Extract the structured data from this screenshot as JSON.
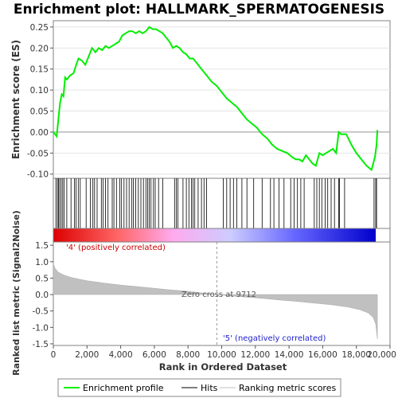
{
  "chart_data": {
    "type": "line",
    "title": "Enrichment plot: HALLMARK_SPERMATOGENESIS",
    "top_panel": {
      "ylabel": "Enrichment score (ES)",
      "ylim": [
        -0.11,
        0.265
      ],
      "yticks": [
        -0.1,
        -0.05,
        0.0,
        0.05,
        0.1,
        0.15,
        0.2,
        0.25
      ],
      "ytick_labels": [
        "-0.10",
        "-0.05",
        "0.00",
        "0.05",
        "0.10",
        "0.15",
        "0.20",
        "0.25"
      ],
      "series": [
        {
          "name": "Enrichment profile",
          "color": "#00ee00",
          "x": [
            0,
            200,
            300,
            400,
            500,
            600,
            700,
            800,
            1000,
            1200,
            1400,
            1500,
            1700,
            1900,
            2100,
            2300,
            2500,
            2700,
            2900,
            3100,
            3300,
            3500,
            3700,
            3900,
            4100,
            4300,
            4500,
            4700,
            4900,
            5100,
            5300,
            5500,
            5700,
            5900,
            6100,
            6300,
            6500,
            6700,
            6900,
            7100,
            7300,
            7500,
            7700,
            7900,
            8100,
            8300,
            8500,
            8800,
            9100,
            9400,
            9700,
            10000,
            10300,
            10600,
            10900,
            11200,
            11500,
            11800,
            12100,
            12400,
            12700,
            13000,
            13300,
            13600,
            13900,
            14200,
            14400,
            14600,
            14800,
            15000,
            15200,
            15400,
            15600,
            15800,
            16000,
            16200,
            16400,
            16600,
            16800,
            16950,
            17100,
            17400,
            17700,
            18000,
            18300,
            18600,
            18900,
            19100,
            19200,
            19250
          ],
          "y": [
            0.0,
            -0.01,
            0.03,
            0.07,
            0.09,
            0.085,
            0.13,
            0.125,
            0.135,
            0.14,
            0.165,
            0.175,
            0.17,
            0.16,
            0.18,
            0.2,
            0.19,
            0.2,
            0.195,
            0.205,
            0.2,
            0.205,
            0.21,
            0.215,
            0.23,
            0.235,
            0.24,
            0.24,
            0.235,
            0.24,
            0.235,
            0.24,
            0.25,
            0.245,
            0.245,
            0.24,
            0.235,
            0.225,
            0.215,
            0.2,
            0.205,
            0.2,
            0.19,
            0.185,
            0.175,
            0.175,
            0.165,
            0.15,
            0.135,
            0.12,
            0.11,
            0.095,
            0.08,
            0.07,
            0.06,
            0.045,
            0.03,
            0.02,
            0.01,
            -0.005,
            -0.015,
            -0.03,
            -0.04,
            -0.045,
            -0.05,
            -0.06,
            -0.065,
            -0.065,
            -0.07,
            -0.055,
            -0.065,
            -0.075,
            -0.08,
            -0.05,
            -0.055,
            -0.05,
            -0.045,
            -0.04,
            -0.05,
            0.0,
            -0.005,
            -0.005,
            -0.03,
            -0.05,
            -0.065,
            -0.08,
            -0.09,
            -0.06,
            -0.03,
            0.005
          ]
        }
      ]
    },
    "hits": {
      "name": "Hits",
      "positions": [
        150,
        240,
        310,
        380,
        470,
        560,
        640,
        800,
        1050,
        1250,
        1350,
        1480,
        1600,
        1950,
        2200,
        2350,
        2450,
        2600,
        2850,
        2950,
        3100,
        3250,
        3500,
        3600,
        3750,
        3950,
        4050,
        4200,
        4350,
        4500,
        4650,
        4750,
        4900,
        5050,
        5200,
        5350,
        5500,
        5600,
        5700,
        5800,
        5950,
        6050,
        6250,
        6500,
        7200,
        7300,
        7400,
        7700,
        7900,
        8050,
        8200,
        8300,
        8400,
        8600,
        8800,
        8950,
        9100,
        10100,
        10300,
        10500,
        10700,
        10900,
        11200,
        11500,
        11900,
        12400,
        12900,
        13100,
        13400,
        13700,
        14100,
        14300,
        14500,
        14700,
        14900,
        15500,
        15650,
        15800,
        15950,
        16150,
        16300,
        16500,
        16700,
        16950,
        17000,
        17300,
        19050,
        19150,
        19200
      ]
    },
    "ranking_bar": {
      "colors": [
        "#dd0000",
        "#ff6666",
        "#ffaaee",
        "#ccccff",
        "#6666ff",
        "#0000cc"
      ],
      "stops": [
        0.0,
        0.2,
        0.37,
        0.55,
        0.75,
        1.0
      ]
    },
    "bottom_panel": {
      "xlabel": "Rank in Ordered Dataset",
      "ylabel": "Ranked list metric (Signal2Noise)",
      "xlim": [
        0,
        20000
      ],
      "xticks": [
        0,
        2000,
        4000,
        6000,
        8000,
        10000,
        12000,
        14000,
        16000,
        18000,
        20000
      ],
      "xtick_labels": [
        "0",
        "2,000",
        "4,000",
        "6,000",
        "8,000",
        "10,000",
        "12,000",
        "14,000",
        "16,000",
        "18,000",
        "20,000"
      ],
      "ylim": [
        -1.55,
        1.6
      ],
      "yticks": [
        -1.5,
        -1.0,
        -0.5,
        0.0,
        0.5,
        1.0,
        1.5
      ],
      "ytick_labels": [
        "-1.5",
        "-1.0",
        "-0.5",
        "0.0",
        "0.5",
        "1.0",
        "1.5"
      ],
      "series": {
        "name": "Ranking metric scores",
        "x": [
          0,
          100,
          300,
          600,
          1000,
          1500,
          2000,
          3000,
          4000,
          5000,
          6000,
          7000,
          8000,
          9000,
          9712,
          10500,
          11500,
          12500,
          13500,
          14500,
          15500,
          16500,
          17500,
          18200,
          18700,
          19000,
          19150,
          19250
        ],
        "y": [
          0.95,
          0.8,
          0.68,
          0.6,
          0.53,
          0.47,
          0.42,
          0.35,
          0.29,
          0.24,
          0.19,
          0.14,
          0.1,
          0.04,
          0.0,
          -0.04,
          -0.08,
          -0.12,
          -0.17,
          -0.21,
          -0.26,
          -0.31,
          -0.38,
          -0.46,
          -0.56,
          -0.7,
          -0.9,
          -1.35
        ]
      },
      "zero_cross_label": "Zero cross at 9712",
      "zero_cross": 9712,
      "pos_label": "'4' (positively correlated)",
      "neg_label": "'5' (negatively correlated)"
    },
    "legend": [
      "Enrichment profile",
      "Hits",
      "Ranking metric scores"
    ]
  }
}
